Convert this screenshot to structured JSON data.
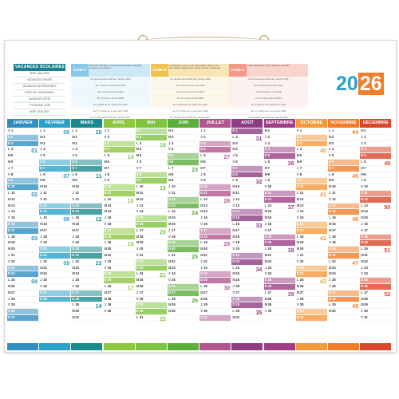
{
  "year": {
    "first": "20",
    "second": "26"
  },
  "vacances": {
    "title": "VACANCES SCOLAIRES",
    "rows": [
      "NOËL 2025-2026",
      "VACANCES D'HIVER",
      "VACANCES DE PRINTEMPS",
      "PONT DE L'ASCENSION",
      "VACANCES D'ÉTÉ",
      "TOUSSAINT 2026",
      "NOËL 2026-2027"
    ]
  },
  "zones": [
    {
      "tag": "ZONE A",
      "color": "#88c7e8",
      "desc": "Besançon, Bordeaux, Clermont-Ferrand, Dijon, Grenoble, Limoges, Lyon, Poitiers",
      "rows": [
        "Du 20 décembre 2025 au 5 janvier 2026",
        "Du 7 février au 23 février 2026",
        "Du 4 avril au 20 avril 2026",
        "Du 13 mai au 18 mai 2026",
        "Du 4 juillet au 1er septembre 2026",
        "Du 17 octobre au 2 novembre 2026",
        "Du 19 décembre 2026 au 4 janvier 2027"
      ]
    },
    {
      "tag": "ZONE B",
      "color": "#f0c34f",
      "desc": "Aix-Marseille, Amiens, Lille, Nancy-Metz, Nantes, Nice, Normandie, Orléans-Tours, Reims, Rennes, Strasbourg",
      "rows": [
        "Du 20 décembre 2025 au 5 janvier 2026",
        "Du 14 février au 2 mars 2026",
        "Du 11 avril au 27 avril 2026",
        "Du 13 mai au 18 mai 2026",
        "Du 4 juillet au 1er septembre 2026",
        "Du 17 octobre au 2 novembre 2026",
        "Du 19 décembre 2026 au 4 janvier 2027"
      ]
    },
    {
      "tag": "ZONE C",
      "color": "#f29a86",
      "desc": "Créteil, Montpellier, Paris, Toulouse, Versailles",
      "rows": [
        "Du 20 décembre 2025 au 5 janvier 2026",
        "Du 21 février au 9 mars 2026",
        "Du 18 avril au 4 mai 2026",
        "Du 13 mai au 18 mai 2026",
        "Du 4 juillet au 1er septembre 2026",
        "Du 17 octobre au 2 novembre 2026",
        "Du 19 décembre 2026 au 4 janvier 2027"
      ]
    }
  ],
  "months": [
    {
      "name": "JANVIER",
      "color": "#2f8fc0",
      "start": 4,
      "len": 31,
      "weeks": [
        "01",
        "02",
        "03",
        "04",
        "05"
      ]
    },
    {
      "name": "FÉVRIER",
      "color": "#2aa2c9",
      "start": 0,
      "len": 28,
      "weeks": [
        "06",
        "07",
        "08",
        "09"
      ]
    },
    {
      "name": "MARS",
      "color": "#1a8a8c",
      "start": 0,
      "len": 31,
      "weeks": [
        "10",
        "11",
        "12",
        "13",
        "14"
      ]
    },
    {
      "name": "AVRIL",
      "color": "#8dc63f",
      "start": 3,
      "len": 30,
      "weeks": [
        "14",
        "15",
        "16",
        "17",
        "18"
      ]
    },
    {
      "name": "MAI",
      "color": "#7ec440",
      "start": 5,
      "len": 31,
      "weeks": [
        "18",
        "19",
        "20",
        "21",
        "22"
      ]
    },
    {
      "name": "JUIN",
      "color": "#5aae3a",
      "start": 1,
      "len": 30,
      "weeks": [
        "23",
        "24",
        "25",
        "26",
        "27"
      ]
    },
    {
      "name": "JUILLET",
      "color": "#b2568f",
      "start": 3,
      "len": 31,
      "weeks": [
        "27",
        "28",
        "29",
        "30",
        "31"
      ]
    },
    {
      "name": "AOÛT",
      "color": "#8e3c83",
      "start": 6,
      "len": 31,
      "weeks": [
        "31",
        "32",
        "33",
        "34",
        "35"
      ]
    },
    {
      "name": "SEPTEMBRE",
      "color": "#9d3e86",
      "start": 2,
      "len": 30,
      "weeks": [
        "36",
        "37",
        "38",
        "39",
        "40"
      ]
    },
    {
      "name": "OCTOBRE",
      "color": "#f39a3c",
      "start": 4,
      "len": 31,
      "weeks": [
        "40",
        "41",
        "42",
        "43",
        "44"
      ]
    },
    {
      "name": "NOVEMBRE",
      "color": "#ef7d2a",
      "start": 0,
      "len": 30,
      "weeks": [
        "44",
        "45",
        "46",
        "47",
        "48"
      ]
    },
    {
      "name": "DÉCEMBRE",
      "color": "#d9472c",
      "start": 2,
      "len": 31,
      "weeks": [
        "49",
        "50",
        "51",
        "52",
        "53"
      ]
    }
  ],
  "day_letters": [
    "L",
    "M",
    "M",
    "J",
    "V",
    "S",
    "D"
  ]
}
